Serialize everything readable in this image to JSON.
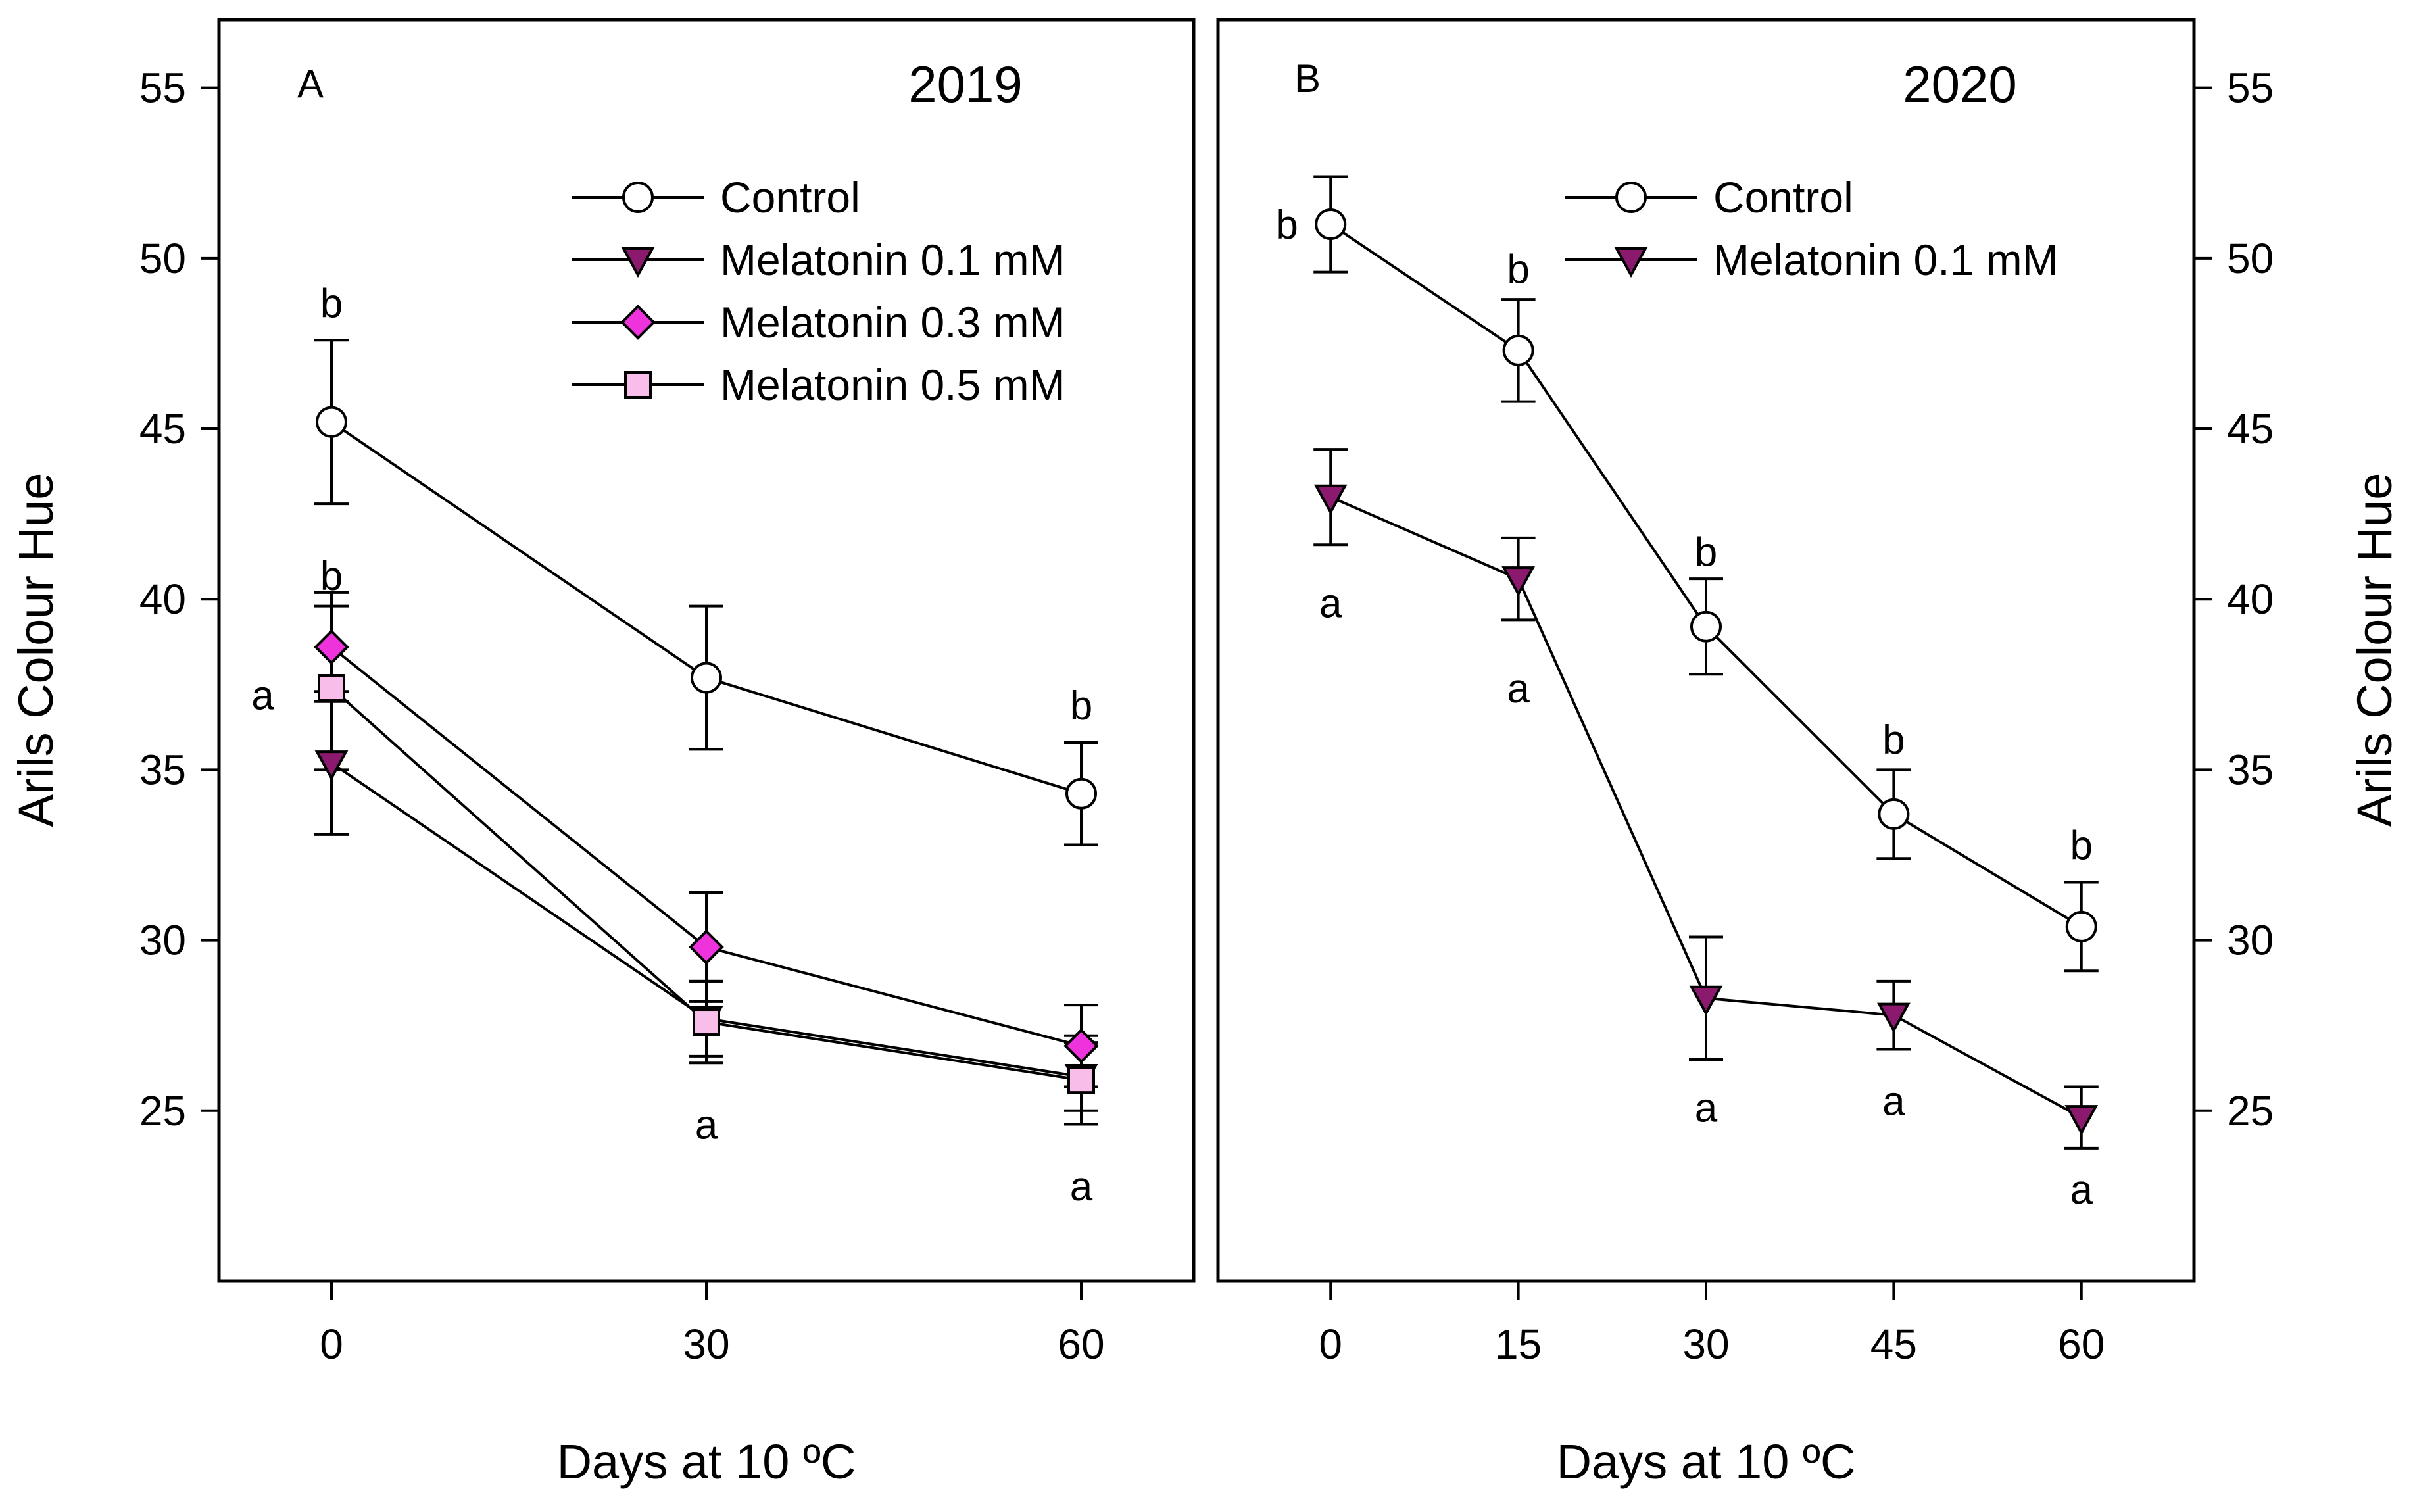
{
  "chart_data": [
    {
      "panel": "A",
      "type": "line",
      "title": "2019",
      "xlabel": "Days at 10 ºC",
      "ylabel": "Arils Colour Hue",
      "x": [
        0,
        30,
        60
      ],
      "xticks": [
        "0",
        "30",
        "60"
      ],
      "xlim": [
        -9,
        69
      ],
      "yticks": [
        "25",
        "30",
        "35",
        "40",
        "45",
        "50",
        "55"
      ],
      "ylim": [
        20,
        57
      ],
      "legend_position": "top-right",
      "series": [
        {
          "name": "Control",
          "marker": "circle",
          "color": "#ffffff",
          "values": [
            45.2,
            37.7,
            34.3
          ],
          "errors": [
            2.4,
            2.1,
            1.5
          ]
        },
        {
          "name": "Melatonin 0.1 mM",
          "marker": "triangle-down",
          "color": "#8b1a6f",
          "values": [
            35.2,
            27.7,
            26.0
          ],
          "errors": [
            2.1,
            1.1,
            1.0
          ]
        },
        {
          "name": "Melatonin 0.3 mM",
          "marker": "diamond",
          "color": "#ee33dd",
          "values": [
            38.6,
            29.8,
            26.9
          ],
          "errors": [
            1.6,
            1.6,
            1.2
          ]
        },
        {
          "name": "Melatonin 0.5 mM",
          "marker": "square",
          "color": "#f8bde8",
          "values": [
            37.4,
            27.6,
            25.9
          ],
          "errors": [
            2.4,
            1.2,
            1.3
          ]
        }
      ],
      "annotations": [
        {
          "text": "b",
          "x": 0,
          "y": 48.7
        },
        {
          "text": "a",
          "x": -5.5,
          "y": 37.2
        },
        {
          "text": "b",
          "x": 0,
          "y": 40.7
        },
        {
          "text": "a",
          "x": 30,
          "y": 24.6
        },
        {
          "text": "b",
          "x": 60,
          "y": 36.9
        },
        {
          "text": "a",
          "x": 60,
          "y": 22.8
        }
      ]
    },
    {
      "panel": "B",
      "type": "line",
      "title": "2020",
      "xlabel": "Days at 10 ºC",
      "ylabel": "Arils Colour Hue",
      "x": [
        0,
        15,
        30,
        45,
        60
      ],
      "xticks": [
        "0",
        "15",
        "30",
        "45",
        "60"
      ],
      "xlim": [
        -9,
        69
      ],
      "yticks": [
        "25",
        "30",
        "35",
        "40",
        "45",
        "50",
        "55"
      ],
      "ylim": [
        20,
        57
      ],
      "legend_position": "top-right",
      "series": [
        {
          "name": "Control",
          "marker": "circle",
          "color": "#ffffff",
          "values": [
            51.0,
            47.3,
            39.2,
            33.7,
            30.4
          ],
          "errors": [
            1.4,
            1.5,
            1.4,
            1.3,
            1.3
          ]
        },
        {
          "name": "Melatonin 0.1 mM",
          "marker": "triangle-down",
          "color": "#8b1a6f",
          "values": [
            43.0,
            40.6,
            28.3,
            27.8,
            24.8
          ],
          "errors": [
            1.4,
            1.2,
            1.8,
            1.0,
            0.9
          ]
        }
      ],
      "annotations": [
        {
          "text": "b",
          "x": -3.5,
          "y": 51.0
        },
        {
          "text": "a",
          "x": 0,
          "y": 39.9
        },
        {
          "text": "b",
          "x": 15,
          "y": 49.7
        },
        {
          "text": "a",
          "x": 15,
          "y": 37.4
        },
        {
          "text": "b",
          "x": 30,
          "y": 41.4
        },
        {
          "text": "a",
          "x": 30,
          "y": 25.1
        },
        {
          "text": "b",
          "x": 45,
          "y": 35.9
        },
        {
          "text": "a",
          "x": 45,
          "y": 25.3
        },
        {
          "text": "b",
          "x": 60,
          "y": 32.8
        },
        {
          "text": "a",
          "x": 60,
          "y": 22.7
        }
      ]
    }
  ]
}
